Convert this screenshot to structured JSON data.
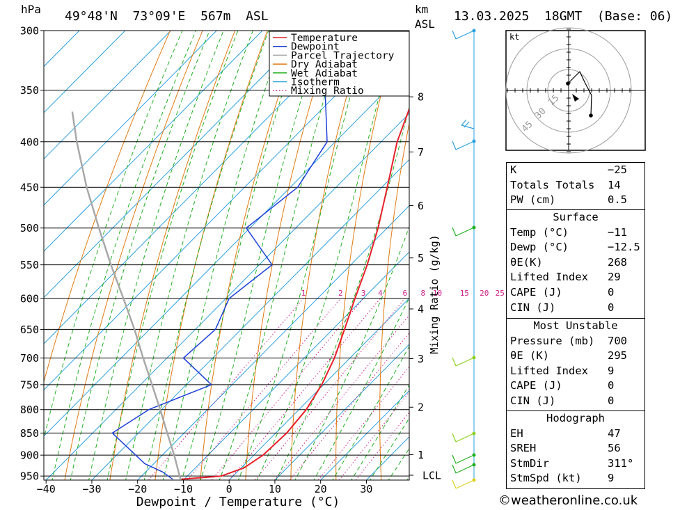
{
  "header": {
    "unit_hpa": "hPa",
    "location": "49°48'N  73°09'E  567m  ASL",
    "unit_km": "km",
    "unit_asl": "ASL",
    "datetime": "13.03.2025  18GMT  (Base: 06)"
  },
  "colors": {
    "temperature": "#e8202a",
    "dewpoint": "#1c3fd8",
    "parcel": "#a8a8a8",
    "dry_adiabat": "#e07a10",
    "wet_adiabat": "#20b020",
    "isotherm": "#2aa0e0",
    "mixing_ratio": "#d0208a"
  },
  "chart_data": {
    "type": "line",
    "title": "",
    "xlabel": "Dewpoint / Temperature (°C)",
    "ylabel": "hPa",
    "x_ticks": [
      "−40",
      "−30",
      "−20",
      "−10",
      "0",
      "10",
      "20",
      "30"
    ],
    "y_ticks": [
      "300",
      "350",
      "400",
      "450",
      "500",
      "550",
      "600",
      "650",
      "700",
      "750",
      "800",
      "850",
      "900",
      "950"
    ],
    "xlim": [
      -40,
      40
    ],
    "ylim": [
      960,
      300
    ],
    "y_scale": "log",
    "skew": true,
    "legend_position": "top-right",
    "legend": [
      "Temperature",
      "Dewpoint",
      "Parcel Trajectory",
      "Dry Adiabat",
      "Wet Adiabat",
      "Isotherm",
      "Mixing Ratio"
    ],
    "series": [
      {
        "name": "Temperature",
        "points": [
          [
            958,
            -10.6
          ],
          [
            950,
            -2.6
          ],
          [
            930,
            0.6
          ],
          [
            900,
            2.0
          ],
          [
            850,
            2.4
          ],
          [
            800,
            1.6
          ],
          [
            750,
            -0.4
          ],
          [
            700,
            -3.4
          ],
          [
            650,
            -7.4
          ],
          [
            600,
            -11.8
          ],
          [
            550,
            -16.4
          ],
          [
            500,
            -22.0
          ],
          [
            450,
            -28.8
          ],
          [
            400,
            -36.5
          ],
          [
            350,
            -43.5
          ],
          [
            300,
            -52.0
          ]
        ]
      },
      {
        "name": "Dewpoint",
        "points": [
          [
            958,
            -12.5
          ],
          [
            940,
            -16.3
          ],
          [
            920,
            -22.0
          ],
          [
            850,
            -35.7
          ],
          [
            800,
            -32.8
          ],
          [
            750,
            -24.5
          ],
          [
            700,
            -36.4
          ],
          [
            650,
            -35.6
          ],
          [
            600,
            -39.3
          ],
          [
            550,
            -37.2
          ],
          [
            500,
            -50.8
          ],
          [
            450,
            -48.4
          ],
          [
            400,
            -51.8
          ],
          [
            350,
            -63.4
          ],
          [
            300,
            -75.5
          ]
        ]
      },
      {
        "name": "Parcel Trajectory",
        "points": [
          [
            958,
            -10.8
          ],
          [
            900,
            -17.4
          ],
          [
            850,
            -23.7
          ],
          [
            800,
            -30.3
          ],
          [
            750,
            -37.5
          ],
          [
            700,
            -45.2
          ],
          [
            650,
            -53.3
          ],
          [
            600,
            -62.4
          ],
          [
            550,
            -72.4
          ],
          [
            500,
            -83.0
          ],
          [
            450,
            -94.5
          ],
          [
            400,
            -106.5
          ],
          [
            370,
            -114.0
          ]
        ]
      }
    ],
    "km_ticks": [
      "8",
      "7",
      "6",
      "5",
      "4",
      "3",
      "2",
      "1",
      "LCL"
    ],
    "mixing_ratio_label": "Mixing Ratio (g/kg)",
    "mixing_ratio_values": [
      "1",
      "2",
      "3",
      "4",
      "6",
      "8",
      "10",
      "15",
      "20",
      "25"
    ]
  },
  "hodograph": {
    "unit": "kt",
    "rings": [
      "15",
      "30",
      "45"
    ]
  },
  "indices": {
    "general": [
      {
        "label": "K",
        "value": "−25"
      },
      {
        "label": "Totals Totals",
        "value": "14"
      },
      {
        "label": "PW (cm)",
        "value": "0.5"
      }
    ],
    "surface_title": "Surface",
    "surface": [
      {
        "label": "Temp (°C)",
        "value": "−11"
      },
      {
        "label": "Dewp (°C)",
        "value": "−12.5"
      },
      {
        "label": "θE(K)",
        "value": "268"
      },
      {
        "label": "Lifted Index",
        "value": "29"
      },
      {
        "label": "CAPE (J)",
        "value": "0"
      },
      {
        "label": "CIN (J)",
        "value": "0"
      }
    ],
    "unstable_title": "Most Unstable",
    "unstable": [
      {
        "label": "Pressure (mb)",
        "value": "700"
      },
      {
        "label": "θE (K)",
        "value": "295"
      },
      {
        "label": "Lifted Index",
        "value": "9"
      },
      {
        "label": "CAPE (J)",
        "value": "0"
      },
      {
        "label": "CIN (J)",
        "value": "0"
      }
    ],
    "hodograph_title": "Hodograph",
    "hodograph": [
      {
        "label": "EH",
        "value": "47"
      },
      {
        "label": "SREH",
        "value": "56"
      },
      {
        "label": "StmDir",
        "value": "311°"
      },
      {
        "label": "StmSpd (kt)",
        "value": "9"
      }
    ]
  },
  "footer": {
    "copyright_symbol": "©",
    "site": "weatheronline.co.uk"
  }
}
